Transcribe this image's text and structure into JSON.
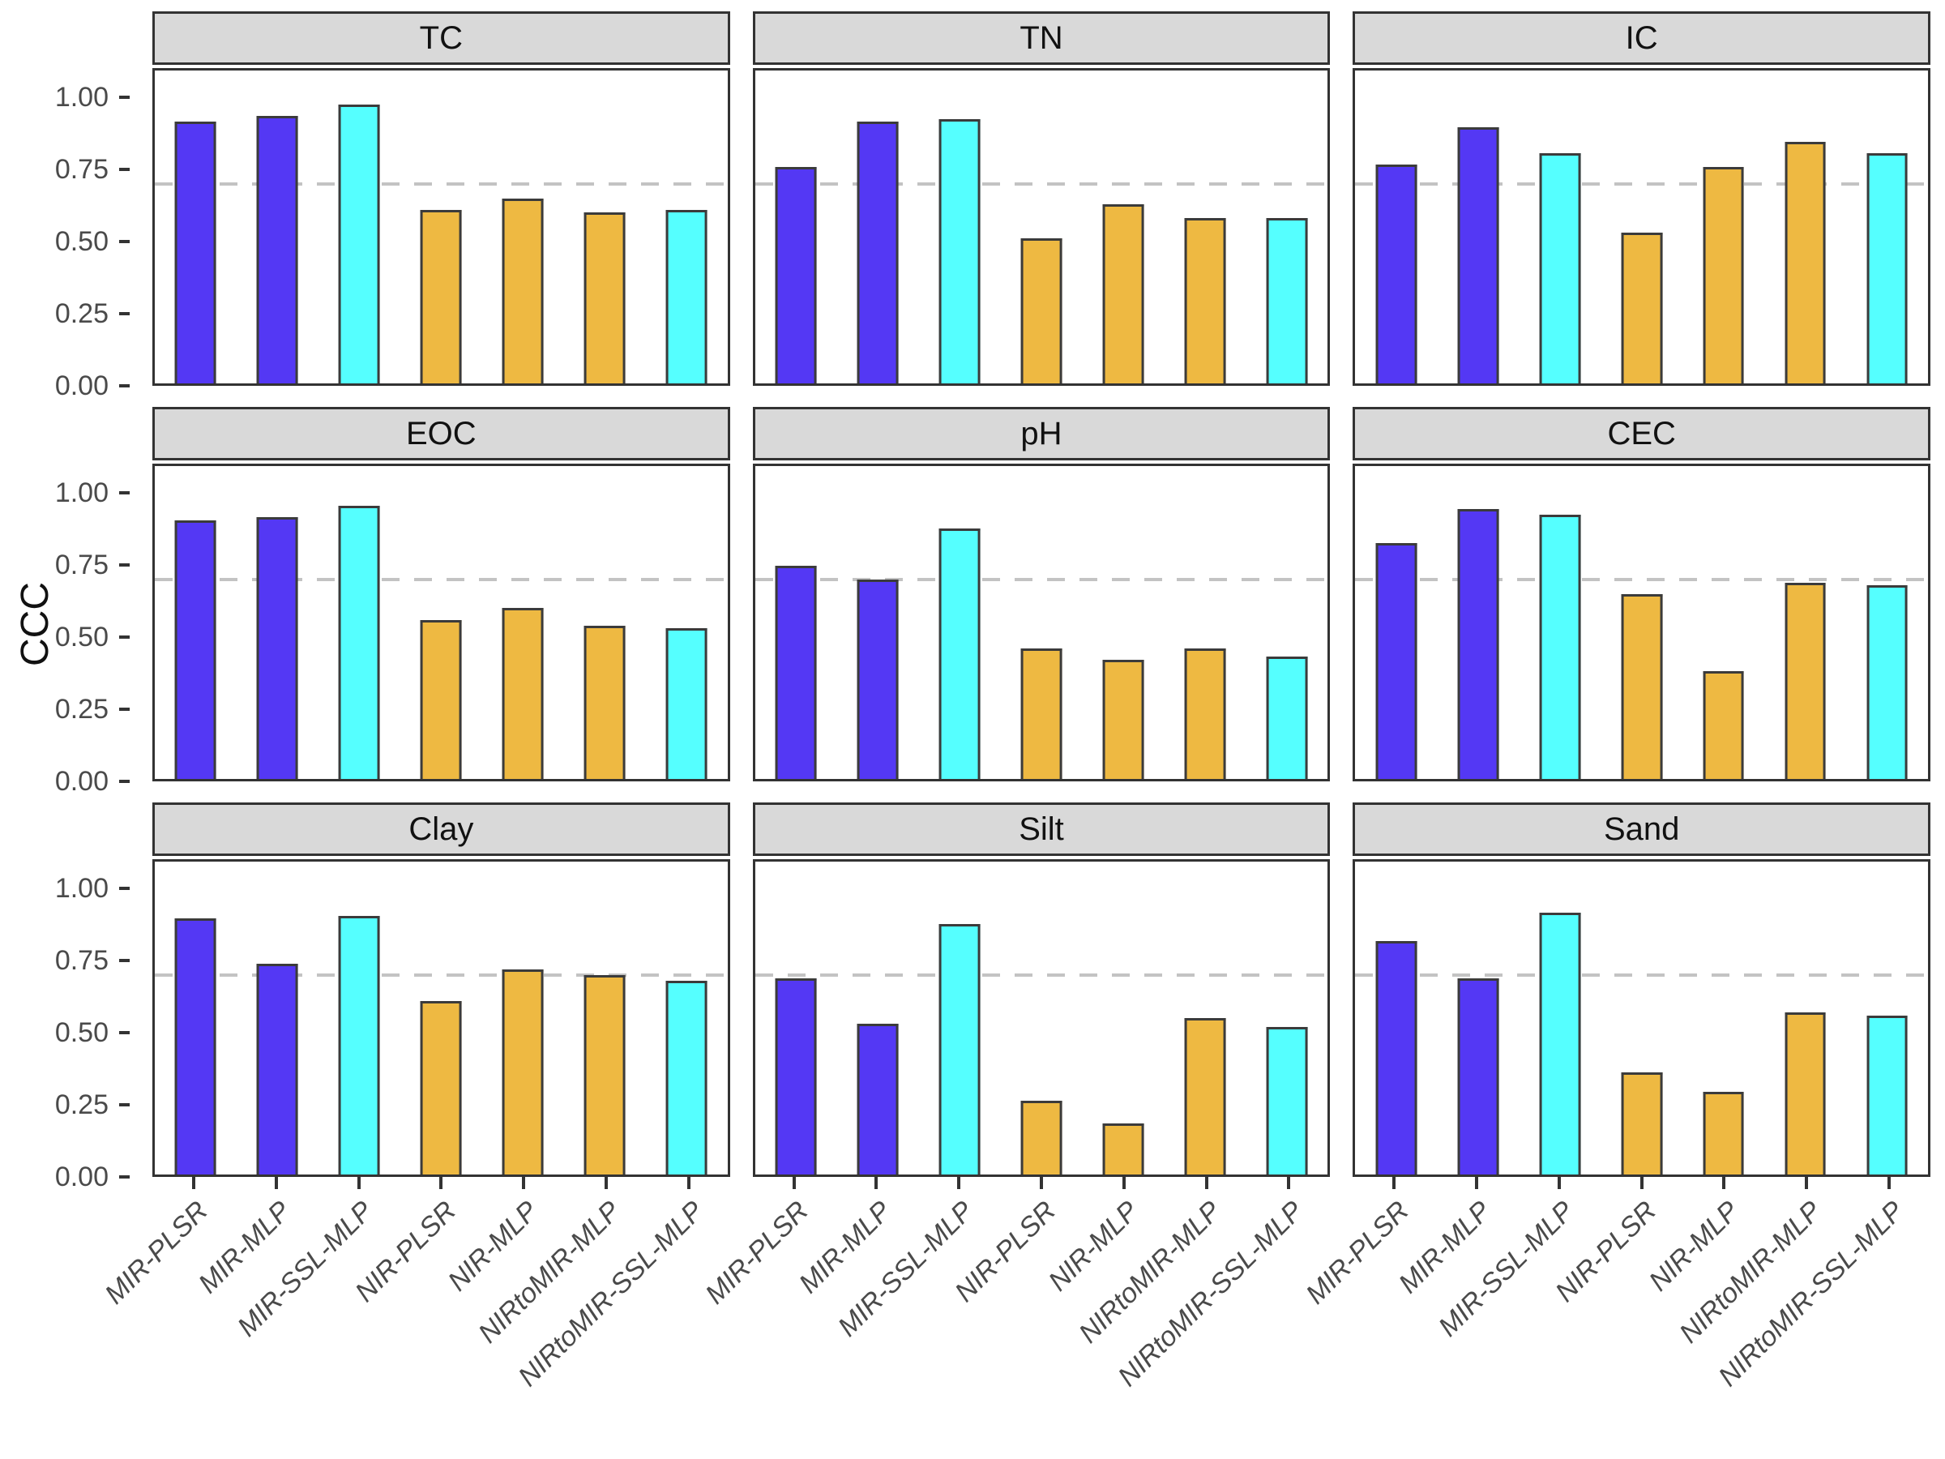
{
  "chart_data": {
    "type": "bar",
    "faceted": true,
    "title": "",
    "ylabel": "CCC",
    "xlabel": "",
    "ylim": [
      0,
      1.1
    ],
    "yticks": [
      0.0,
      0.25,
      0.5,
      0.75,
      1.0
    ],
    "ytick_labels": [
      "0.00",
      "0.25",
      "0.50",
      "0.75",
      "1.00"
    ],
    "reference_line_y": 0.7,
    "reference_line_style": "dashed",
    "grid": "off",
    "legend_position": "none",
    "categories": [
      "MIR-PLSR",
      "MIR-MLP",
      "MIR-SSL-MLP",
      "NIR-PLSR",
      "NIR-MLP",
      "NIRtoMIR-MLP",
      "NIRtoMIR-SSL-MLP"
    ],
    "bar_colors": [
      "#5438F4",
      "#5438F4",
      "#55FFFF",
      "#EEB942",
      "#EEB942",
      "#EEB942",
      "#55FFFF"
    ],
    "panels": [
      {
        "title": "TC",
        "values": [
          0.92,
          0.94,
          0.98,
          0.61,
          0.65,
          0.6,
          0.61
        ]
      },
      {
        "title": "TN",
        "values": [
          0.76,
          0.92,
          0.93,
          0.51,
          0.63,
          0.58,
          0.58
        ]
      },
      {
        "title": "IC",
        "values": [
          0.77,
          0.9,
          0.81,
          0.53,
          0.76,
          0.85,
          0.81
        ]
      },
      {
        "title": "EOC",
        "values": [
          0.91,
          0.92,
          0.96,
          0.56,
          0.6,
          0.54,
          0.53
        ]
      },
      {
        "title": "pH",
        "values": [
          0.75,
          0.7,
          0.88,
          0.46,
          0.42,
          0.46,
          0.43
        ]
      },
      {
        "title": "CEC",
        "values": [
          0.83,
          0.95,
          0.93,
          0.65,
          0.38,
          0.69,
          0.68
        ]
      },
      {
        "title": "Clay",
        "values": [
          0.9,
          0.74,
          0.91,
          0.61,
          0.72,
          0.7,
          0.68
        ]
      },
      {
        "title": "Silt",
        "values": [
          0.69,
          0.53,
          0.88,
          0.26,
          0.18,
          0.55,
          0.52
        ]
      },
      {
        "title": "Sand",
        "values": [
          0.82,
          0.69,
          0.92,
          0.36,
          0.29,
          0.57,
          0.56
        ]
      }
    ],
    "style": {
      "strip_background": "#d9d9d9",
      "panel_border": "#333333",
      "bar_outline": "#3b3b3b",
      "reference_line_color": "#c3c3c3",
      "axis_text_color": "#4a4a4a",
      "strip_text_color": "#111111"
    }
  }
}
